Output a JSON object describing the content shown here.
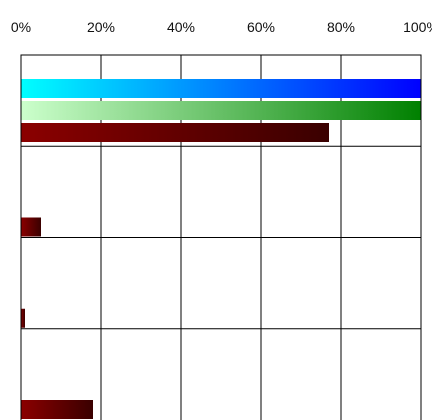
{
  "chart_data": {
    "type": "bar",
    "orientation": "horizontal",
    "xlim": [
      0,
      100
    ],
    "x_ticks": [
      "0%",
      "20%",
      "40%",
      "60%",
      "80%",
      "100%"
    ],
    "tick_position": "top",
    "grid": true,
    "categories": [
      "",
      "",
      "",
      ""
    ],
    "series": [
      {
        "values": [
          100,
          null,
          null,
          null
        ],
        "gradient": [
          "#00ffff",
          "#0000ff"
        ]
      },
      {
        "values": [
          100,
          null,
          null,
          null
        ],
        "gradient": [
          "#ccffcc",
          "#008000"
        ]
      },
      {
        "values": [
          77,
          5,
          1,
          18
        ],
        "gradient": [
          "#8b0000",
          "#3a0000"
        ]
      }
    ]
  }
}
